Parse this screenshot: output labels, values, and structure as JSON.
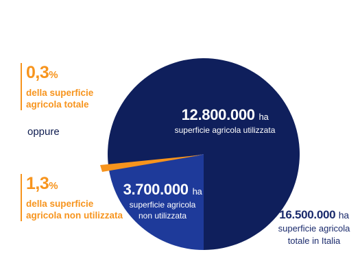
{
  "chart_data": {
    "type": "pie",
    "total": {
      "value": 16500000,
      "value_text": "16.500.000",
      "unit": "ha",
      "label": "superficie agricola totale in Italia"
    },
    "slices": [
      {
        "value": 12800000,
        "value_text": "12.800.000",
        "unit": "ha",
        "label": "superficie agricola utilizzata",
        "color": "#0F1F5C"
      },
      {
        "value": 3700000,
        "value_text": "3.700.000",
        "unit": "ha",
        "label": "superficie agricola non utilizzata",
        "color": "#1E3A9A"
      }
    ],
    "highlight": {
      "label": "1,3% della superficie agricola non utilizzata",
      "color": "#F7941D"
    }
  },
  "callouts": {
    "top": {
      "value": "0,3",
      "unit": "%",
      "line1": "della superficie",
      "line2": "agricola totale"
    },
    "bottom": {
      "value": "1,3",
      "unit": "%",
      "line1": "della superficie",
      "line2": "agricola non utilizzata"
    }
  },
  "connector": "oppure",
  "labels": {
    "used": {
      "value": "12.800.000",
      "unit": "ha",
      "sub": "superficie agricola utilizzata"
    },
    "unused": {
      "value": "3.700.000",
      "unit": "ha",
      "sub1": "superficie agricola",
      "sub2": "non utilizzata"
    },
    "total": {
      "value": "16.500.000",
      "unit": "ha",
      "sub1": "superficie agricola",
      "sub2": "totale in Italia"
    }
  },
  "colors": {
    "accent": "#F7941D",
    "navy": "#0F1F5C",
    "blue": "#1E3A9A",
    "text_navy": "#1a2a6c"
  }
}
